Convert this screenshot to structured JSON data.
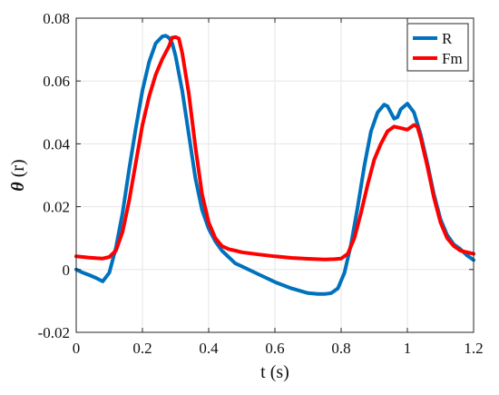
{
  "chart_data": {
    "type": "line",
    "xlabel": "t (s)",
    "ylabel_symbol": "θ",
    "ylabel_unit": " (r)",
    "xlim": [
      0,
      1.2
    ],
    "ylim": [
      -0.02,
      0.08
    ],
    "xticks": [
      0,
      0.2,
      0.4,
      0.6,
      0.8,
      1,
      1.2
    ],
    "xtick_labels": [
      "0",
      "0.2",
      "0.4",
      "0.6",
      "0.8",
      "1",
      "1.2"
    ],
    "yticks": [
      -0.02,
      0,
      0.02,
      0.04,
      0.06,
      0.08
    ],
    "ytick_labels": [
      "-0.02",
      "0",
      "0.02",
      "0.04",
      "0.06",
      "0.08"
    ],
    "grid": true,
    "legend_position": "top-right",
    "series": [
      {
        "name": "R",
        "color": "#0072BD",
        "x": [
          0,
          0.02,
          0.04,
          0.06,
          0.08,
          0.1,
          0.12,
          0.14,
          0.16,
          0.18,
          0.2,
          0.22,
          0.24,
          0.26,
          0.27,
          0.28,
          0.29,
          0.3,
          0.32,
          0.34,
          0.36,
          0.38,
          0.4,
          0.42,
          0.44,
          0.46,
          0.48,
          0.5,
          0.55,
          0.6,
          0.65,
          0.7,
          0.73,
          0.75,
          0.77,
          0.79,
          0.81,
          0.83,
          0.85,
          0.87,
          0.89,
          0.91,
          0.93,
          0.94,
          0.96,
          0.97,
          0.98,
          1.0,
          1.02,
          1.04,
          1.06,
          1.08,
          1.1,
          1.12,
          1.14,
          1.16,
          1.18,
          1.2
        ],
        "y": [
          0,
          -0.001,
          -0.0018,
          -0.0027,
          -0.0038,
          -0.001,
          0.007,
          0.018,
          0.032,
          0.045,
          0.057,
          0.066,
          0.072,
          0.0742,
          0.0744,
          0.0738,
          0.072,
          0.068,
          0.057,
          0.043,
          0.029,
          0.019,
          0.013,
          0.009,
          0.006,
          0.004,
          0.002,
          0.001,
          -0.0015,
          -0.004,
          -0.006,
          -0.0075,
          -0.0078,
          -0.0078,
          -0.0075,
          -0.006,
          -0.001,
          0.008,
          0.02,
          0.033,
          0.044,
          0.05,
          0.0525,
          0.052,
          0.048,
          0.0485,
          0.051,
          0.0528,
          0.05,
          0.043,
          0.034,
          0.024,
          0.016,
          0.011,
          0.008,
          0.0065,
          0.0045,
          0.003
        ]
      },
      {
        "name": "Fm",
        "color": "#FF0000",
        "x": [
          0,
          0.02,
          0.04,
          0.06,
          0.08,
          0.1,
          0.12,
          0.14,
          0.16,
          0.18,
          0.2,
          0.22,
          0.24,
          0.26,
          0.28,
          0.29,
          0.3,
          0.31,
          0.32,
          0.34,
          0.36,
          0.38,
          0.4,
          0.42,
          0.44,
          0.46,
          0.48,
          0.5,
          0.55,
          0.6,
          0.65,
          0.7,
          0.75,
          0.78,
          0.8,
          0.82,
          0.84,
          0.86,
          0.88,
          0.9,
          0.92,
          0.94,
          0.96,
          0.98,
          1.0,
          1.02,
          1.03,
          1.04,
          1.06,
          1.08,
          1.1,
          1.12,
          1.14,
          1.16,
          1.18,
          1.2
        ],
        "y": [
          0.0042,
          0.004,
          0.0038,
          0.0036,
          0.0035,
          0.004,
          0.006,
          0.012,
          0.022,
          0.034,
          0.046,
          0.055,
          0.062,
          0.067,
          0.071,
          0.0738,
          0.074,
          0.0735,
          0.069,
          0.056,
          0.039,
          0.024,
          0.015,
          0.01,
          0.0075,
          0.0065,
          0.006,
          0.0055,
          0.0048,
          0.0042,
          0.0037,
          0.0034,
          0.0032,
          0.0033,
          0.0035,
          0.005,
          0.01,
          0.018,
          0.027,
          0.035,
          0.04,
          0.044,
          0.0455,
          0.045,
          0.0445,
          0.046,
          0.0455,
          0.042,
          0.033,
          0.023,
          0.015,
          0.01,
          0.0075,
          0.006,
          0.0055,
          0.005
        ]
      }
    ]
  }
}
